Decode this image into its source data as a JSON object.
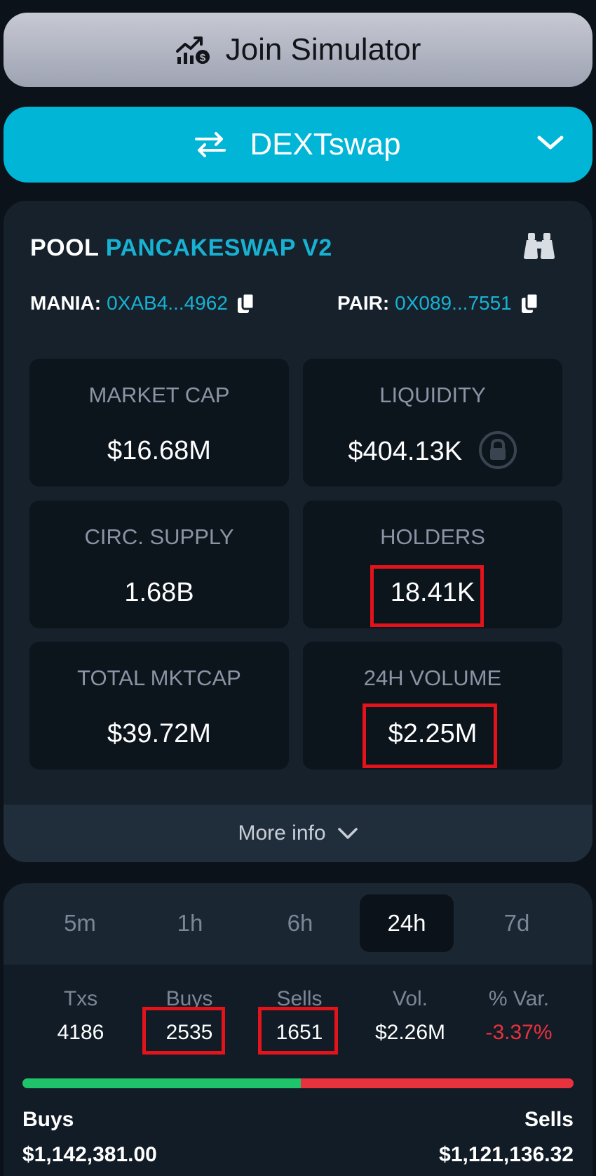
{
  "join": {
    "label": "Join Simulator"
  },
  "dex": {
    "label": "DEXTswap"
  },
  "pool": {
    "prefix": "POOL",
    "dex_name": "PANCAKESWAP V2",
    "token_label": "MANIA:",
    "token_addr": "0XAB4...4962",
    "pair_label": "PAIR:",
    "pair_addr": "0X089...7551"
  },
  "stats": [
    {
      "label": "MARKET CAP",
      "value": "$16.68M"
    },
    {
      "label": "LIQUIDITY",
      "value": "$404.13K"
    },
    {
      "label": "CIRC. SUPPLY",
      "value": "1.68B"
    },
    {
      "label": "HOLDERS",
      "value": "18.41K"
    },
    {
      "label": "TOTAL MKTCAP",
      "value": "$39.72M"
    },
    {
      "label": "24H VOLUME",
      "value": "$2.25M"
    }
  ],
  "more_info": {
    "label": "More info"
  },
  "tabs": [
    {
      "label": "5m"
    },
    {
      "label": "1h"
    },
    {
      "label": "6h"
    },
    {
      "label": "24h",
      "active": true
    },
    {
      "label": "7d"
    }
  ],
  "tx_stats": [
    {
      "label": "Txs",
      "value": "4186"
    },
    {
      "label": "Buys",
      "value": "2535"
    },
    {
      "label": "Sells",
      "value": "1651"
    },
    {
      "label": "Vol.",
      "value": "$2.26M"
    },
    {
      "label": "% Var.",
      "value": "-3.37%"
    }
  ],
  "ratio": {
    "buy_fraction": 0.505
  },
  "footer": {
    "buys_label": "Buys",
    "buys_value": "$1,142,381.00",
    "sells_label": "Sells",
    "sells_value": "$1,121,136.32"
  },
  "colors": {
    "accent": "#00b5d6",
    "positive": "#1fc36a",
    "negative": "#e8323d",
    "highlight": "#e2131b"
  }
}
